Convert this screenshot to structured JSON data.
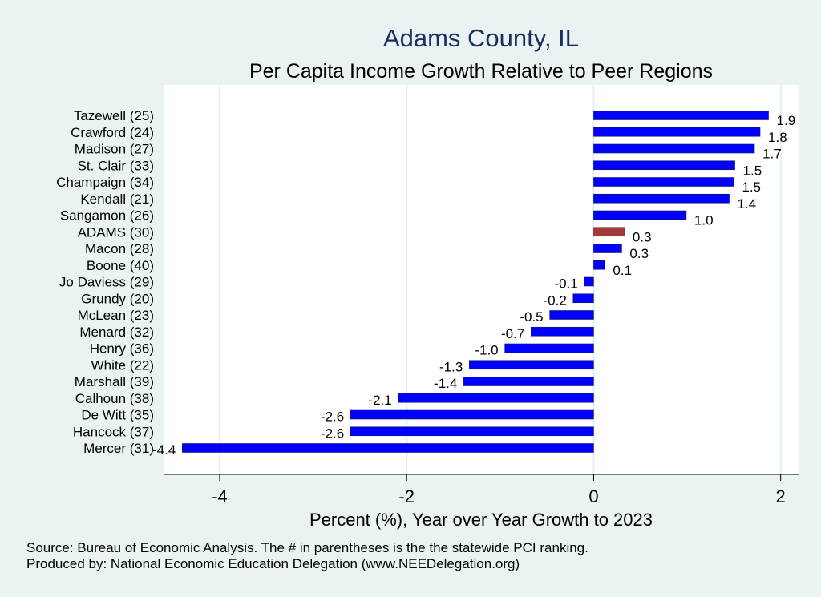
{
  "chart_data": {
    "type": "bar",
    "orientation": "horizontal",
    "title": "Adams County, IL",
    "subtitle": "Per Capita Income Growth Relative to Peer Regions",
    "xlabel": "Percent (%), Year over Year Growth to 2023",
    "ylabel": "",
    "xlim": [
      -4.6,
      2.2
    ],
    "xticks": [
      -4,
      -2,
      0,
      2
    ],
    "grid": true,
    "categories": [
      "Tazewell (25)",
      "Crawford (24)",
      "Madison (27)",
      "St. Clair (33)",
      "Champaign (34)",
      "Kendall (21)",
      "Sangamon (26)",
      "ADAMS (30)",
      "Macon (28)",
      "Boone (40)",
      "Jo Daviess (29)",
      "Grundy (20)",
      "McLean (23)",
      "Menard (32)",
      "Henry (36)",
      "White (22)",
      "Marshall (39)",
      "Calhoun (38)",
      "De Witt (35)",
      "Hancock (37)",
      "Mercer (31)"
    ],
    "values": [
      1.87,
      1.78,
      1.72,
      1.51,
      1.5,
      1.45,
      0.99,
      0.33,
      0.3,
      0.12,
      -0.1,
      -0.22,
      -0.47,
      -0.67,
      -0.95,
      -1.33,
      -1.39,
      -2.09,
      -2.6,
      -2.6,
      -4.4
    ],
    "value_labels": [
      "1.9",
      "1.8",
      "1.7",
      "1.5",
      "1.5",
      "1.4",
      "1.0",
      "0.3",
      "0.3",
      "0.1",
      "-0.1",
      "-0.2",
      "-0.5",
      "-0.7",
      "-1.0",
      "-1.3",
      "-1.4",
      "-2.1",
      "-2.6",
      "-2.6",
      "-4.4"
    ],
    "highlight": "ADAMS (30)",
    "colors": {
      "bar": "#0000ff",
      "highlight": "#a33a3a",
      "plot_bg": "#ffffff",
      "grid": "#e4eef0"
    }
  },
  "footer": {
    "source": "Source: Bureau of Economic Analysis. The # in parentheses is the the statewide PCI ranking.",
    "produced_by": "Produced by: National Economic Education Delegation (www.NEEDelegation.org)"
  }
}
